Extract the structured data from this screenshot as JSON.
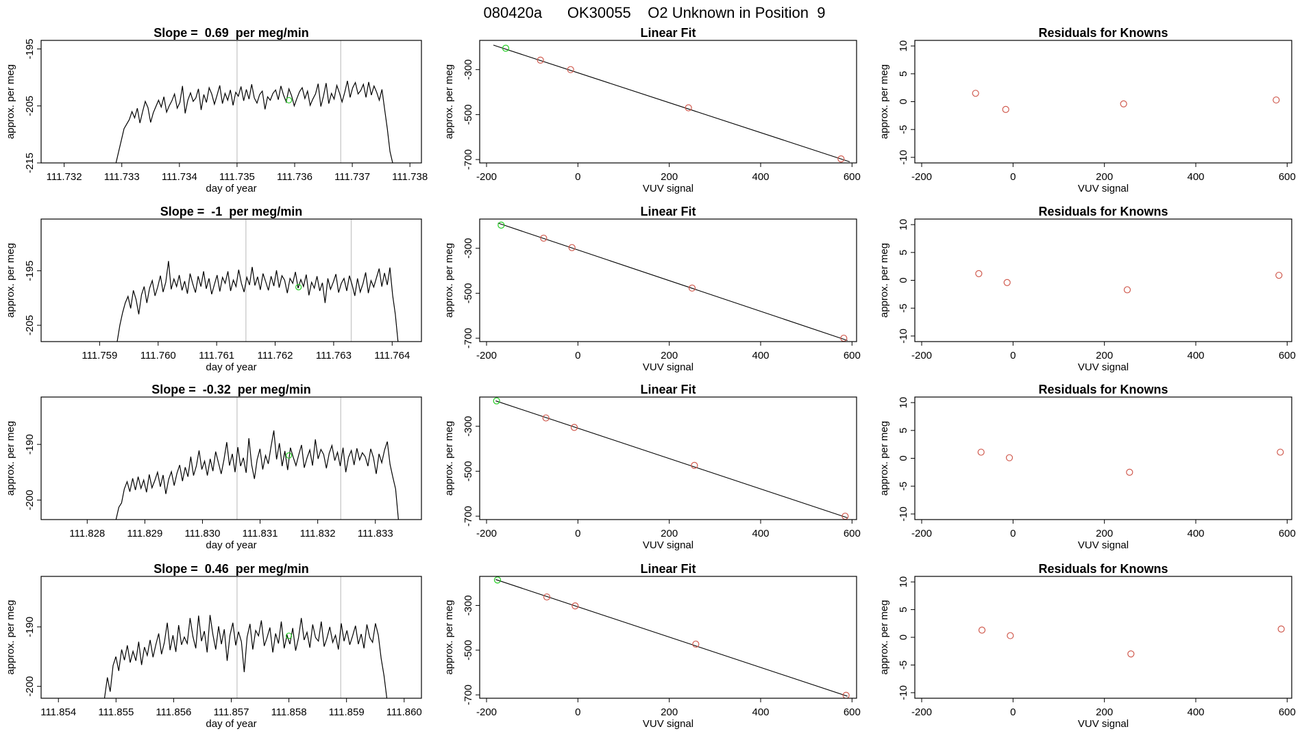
{
  "figure_title": "080420a      OK30055    O2 Unknown in Position  9",
  "colors": {
    "trace": "#000000",
    "fit_line": "#000000",
    "known_points": "#d05a4e",
    "unknown_point": "#22cc22",
    "marker_line": "#c8c8c8"
  },
  "chart_data": [
    {
      "type": "line",
      "panel": "timeseries-1",
      "title": "Slope =  0.69  per meg/min",
      "xlabel": "day of year",
      "ylabel": "approx. per meg",
      "xlim": [
        111.7316,
        111.7382
      ],
      "ylim": [
        -215,
        -193.5
      ],
      "xticks": [
        "111.732",
        "111.733",
        "111.734",
        "111.735",
        "111.736",
        "111.737",
        "111.738"
      ],
      "yticks": [
        "-195",
        "-205",
        "-215"
      ],
      "ytick_values": [
        -195,
        -205,
        -215
      ],
      "series": [
        {
          "x_start": 111.7329,
          "x_end": 111.7377,
          "center": -205.5,
          "values": [
            -215,
            -213,
            -211,
            -209,
            -208.2,
            -207.4,
            -206,
            -207.1,
            -205.4,
            -208,
            -206,
            -204.2,
            -205.3,
            -207.9,
            -206.2,
            -205.1,
            -204,
            -205.2,
            -203.4,
            -206.1,
            -205,
            -204.1,
            -202.9,
            -205.4,
            -204.4,
            -201.5,
            -206.3,
            -204,
            -202.7,
            -204.2,
            -203.6,
            -202,
            -205.7,
            -203,
            -204.4,
            -201.8,
            -202.9,
            -204.7,
            -203.1,
            -201.4,
            -204.6,
            -202.8,
            -204,
            -202.2,
            -204.9,
            -202.6,
            -203.3,
            -201.6,
            -204.1,
            -202.1,
            -203.8,
            -201.2,
            -203.6,
            -204.5,
            -203,
            -202.4,
            -205.6,
            -203.4,
            -204,
            -202.8,
            -202.2,
            -203.9,
            -201.5,
            -203.1,
            -204.3,
            -202,
            -203.2,
            -205,
            -203.7,
            -202.5,
            -201.8,
            -203.7,
            -202.4,
            -204.9,
            -203.8,
            -202.9,
            -201.1,
            -205.1,
            -203.3,
            -201,
            -204.6,
            -202.8,
            -203.8,
            -201.4,
            -202.7,
            -204.3,
            -202.6,
            -200.6,
            -203.5,
            -201.8,
            -200.9,
            -202.9,
            -202.3,
            -201.2,
            -203.5,
            -200.8,
            -203.1,
            -201.5,
            -202.6,
            -204,
            -202.1,
            -205.6,
            -209,
            -213,
            -215
          ]
        }
      ],
      "vlines": [
        111.735,
        111.7368
      ],
      "unknown_point": {
        "x": 111.7359,
        "y": -204
      }
    },
    {
      "type": "scatter",
      "panel": "linear-fit-1",
      "title": "Linear Fit",
      "xlabel": "VUV signal",
      "ylabel": "approx. per meg",
      "xlim": [
        -215,
        610
      ],
      "ylim": [
        -715,
        -170
      ],
      "xticks": [
        "-200",
        "0",
        "200",
        "400",
        "600"
      ],
      "yticks": [
        "-300",
        "-500",
        "-700"
      ],
      "ytick_values": [
        -300,
        -500,
        -700
      ],
      "fit_line": {
        "x": [
          -185,
          595
        ],
        "y": [
          -191,
          -710
        ]
      },
      "known_points": {
        "x": [
          -82,
          -16,
          242,
          576
        ],
        "y": [
          -258,
          -300,
          -470,
          -697
        ]
      },
      "unknown_point": {
        "x": -158,
        "y": -205
      }
    },
    {
      "type": "scatter",
      "panel": "residuals-1",
      "title": "Residuals for Knowns",
      "xlabel": "VUV signal",
      "ylabel": "approx. per meg",
      "xlim": [
        -215,
        610
      ],
      "ylim": [
        -11,
        11
      ],
      "xticks": [
        "-200",
        "0",
        "200",
        "400",
        "600"
      ],
      "yticks": [
        "10",
        "5",
        "0",
        "-5",
        "-10"
      ],
      "ytick_values": [
        10,
        5,
        0,
        -5,
        -10
      ],
      "known_points": {
        "x": [
          -82,
          -16,
          242,
          576
        ],
        "y": [
          1.5,
          -1.4,
          -0.4,
          0.3
        ]
      }
    },
    {
      "type": "line",
      "panel": "timeseries-2",
      "title": "Slope =  -1  per meg/min",
      "xlabel": "day of year",
      "ylabel": "approx. per meg",
      "xlim": [
        111.758,
        111.7645
      ],
      "ylim": [
        -208,
        -185.5
      ],
      "xticks": [
        "111.759",
        "111.760",
        "111.761",
        "111.762",
        "111.763",
        "111.764"
      ],
      "yticks": [
        "-195",
        "-205"
      ],
      "ytick_values": [
        -195,
        -205
      ],
      "series": [
        {
          "x_start": 111.7593,
          "x_end": 111.7641,
          "center": -197.5,
          "values": [
            -208,
            -205,
            -202.7,
            -200.9,
            -199.7,
            -201.9,
            -198.6,
            -200.3,
            -203,
            -199.4,
            -197.9,
            -200.9,
            -198.2,
            -196.8,
            -199.6,
            -198,
            -195.9,
            -198.9,
            -197.1,
            -193.2,
            -198.4,
            -196.5,
            -197.9,
            -195.8,
            -198.6,
            -196.9,
            -199.2,
            -195.5,
            -197.4,
            -199,
            -196,
            -197.9,
            -195.1,
            -198.3,
            -196.4,
            -199.3,
            -197.5,
            -195.8,
            -198.8,
            -196.2,
            -197.3,
            -195.1,
            -198.7,
            -196.7,
            -197.9,
            -194.8,
            -197.3,
            -198.9,
            -196.2,
            -197.6,
            -194.3,
            -197.7,
            -196.1,
            -198.5,
            -195.5,
            -197,
            -198.6,
            -196,
            -197.8,
            -194.9,
            -198.1,
            -195.9,
            -196.7,
            -199.1,
            -196.4,
            -197.3,
            -195.2,
            -198.2,
            -196.6,
            -197.9,
            -195.7,
            -199.5,
            -197.1,
            -198.2,
            -196,
            -198.7,
            -197.2,
            -200.9,
            -196.4,
            -198.4,
            -197.1,
            -195.6,
            -199,
            -197.3,
            -196.4,
            -198.7,
            -195.9,
            -197.6,
            -199.6,
            -196.4,
            -198.9,
            -197.4,
            -195.3,
            -199.1,
            -196.8,
            -198,
            -196.3,
            -194.6,
            -197.9,
            -195.4,
            -197.6,
            -194.4,
            -199.5,
            -203,
            -208
          ]
        }
      ],
      "vlines": [
        111.7615,
        111.7633
      ],
      "unknown_point": {
        "x": 111.7624,
        "y": -198
      }
    },
    {
      "type": "scatter",
      "panel": "linear-fit-2",
      "title": "Linear Fit",
      "xlabel": "VUV signal",
      "ylabel": "approx. per meg",
      "xlim": [
        -215,
        610
      ],
      "ylim": [
        -715,
        -170
      ],
      "xticks": [
        "-200",
        "0",
        "200",
        "400",
        "600"
      ],
      "yticks": [
        "-300",
        "-500",
        "-700"
      ],
      "ytick_values": [
        -300,
        -500,
        -700
      ],
      "fit_line": {
        "x": [
          -175,
          590
        ],
        "y": [
          -188,
          -710
        ]
      },
      "known_points": {
        "x": [
          -75,
          -13,
          250,
          582
        ],
        "y": [
          -255,
          -297,
          -477,
          -700
        ]
      },
      "unknown_point": {
        "x": -168,
        "y": -197
      }
    },
    {
      "type": "scatter",
      "panel": "residuals-2",
      "title": "Residuals for Knowns",
      "xlabel": "VUV signal",
      "ylabel": "approx. per meg",
      "xlim": [
        -215,
        610
      ],
      "ylim": [
        -11,
        11
      ],
      "xticks": [
        "-200",
        "0",
        "200",
        "400",
        "600"
      ],
      "yticks": [
        "10",
        "5",
        "0",
        "-5",
        "-10"
      ],
      "ytick_values": [
        10,
        5,
        0,
        -5,
        -10
      ],
      "known_points": {
        "x": [
          -75,
          -13,
          250,
          582
        ],
        "y": [
          1.2,
          -0.4,
          -1.7,
          0.9
        ]
      }
    },
    {
      "type": "line",
      "panel": "timeseries-3",
      "title": "Slope =  -0.32  per meg/min",
      "xlabel": "day of year",
      "ylabel": "approx. per meg",
      "xlim": [
        111.8272,
        111.8338
      ],
      "ylim": [
        -203.5,
        -181.5
      ],
      "xticks": [
        "111.828",
        "111.829",
        "111.830",
        "111.831",
        "111.832",
        "111.833"
      ],
      "yticks": [
        "-190",
        "-200"
      ],
      "ytick_values": [
        -190,
        -200
      ],
      "series": [
        {
          "x_start": 111.8285,
          "x_end": 111.8334,
          "center": -193.5,
          "values": [
            -203.5,
            -201.3,
            -200.5,
            -198,
            -196.7,
            -198.5,
            -196.1,
            -198.2,
            -195.8,
            -197.9,
            -196.4,
            -198.6,
            -195.4,
            -197.8,
            -196.5,
            -195,
            -197.6,
            -195.5,
            -198.9,
            -196.3,
            -194.9,
            -197.4,
            -195.2,
            -193.7,
            -196.6,
            -194.1,
            -195.8,
            -192.2,
            -195.6,
            -193.9,
            -191.1,
            -194.5,
            -193,
            -195.6,
            -192.6,
            -194.8,
            -191.3,
            -193.3,
            -195.3,
            -192.7,
            -189.6,
            -193.8,
            -191.7,
            -195,
            -190.5,
            -193.9,
            -192.4,
            -195.1,
            -188.9,
            -193.7,
            -196.2,
            -192.7,
            -190.8,
            -194.5,
            -192,
            -193.5,
            -190.4,
            -187.5,
            -192.7,
            -189.8,
            -193.9,
            -191.2,
            -194.6,
            -190.6,
            -192.3,
            -193.8,
            -191.9,
            -190.1,
            -194.2,
            -192.4,
            -191,
            -193.8,
            -189.1,
            -192.6,
            -190.9,
            -191.8,
            -194.3,
            -191.6,
            -190.2,
            -192.9,
            -191.4,
            -193.9,
            -190.6,
            -195,
            -192.3,
            -191.1,
            -193.7,
            -190.7,
            -192.8,
            -191.5,
            -192.2,
            -193.9,
            -190.8,
            -192.4,
            -195.3,
            -191.7,
            -193.3,
            -191,
            -189.5,
            -193.6,
            -195.9,
            -198,
            -203.5
          ]
        }
      ],
      "vlines": [
        111.8306,
        111.8324
      ],
      "unknown_point": {
        "x": 111.8315,
        "y": -192
      }
    },
    {
      "type": "scatter",
      "panel": "linear-fit-3",
      "title": "Linear Fit",
      "xlabel": "VUV signal",
      "ylabel": "approx. per meg",
      "xlim": [
        -215,
        610
      ],
      "ylim": [
        -715,
        -170
      ],
      "xticks": [
        "-200",
        "0",
        "200",
        "400",
        "600"
      ],
      "yticks": [
        "-300",
        "-500",
        "-700"
      ],
      "ytick_values": [
        -300,
        -500,
        -700
      ],
      "fit_line": {
        "x": [
          -180,
          590
        ],
        "y": [
          -187,
          -707
        ]
      },
      "known_points": {
        "x": [
          -70,
          -8,
          255,
          585
        ],
        "y": [
          -263,
          -305,
          -474,
          -700
        ]
      },
      "unknown_point": {
        "x": -178,
        "y": -187
      }
    },
    {
      "type": "scatter",
      "panel": "residuals-3",
      "title": "Residuals for Knowns",
      "xlabel": "VUV signal",
      "ylabel": "approx. per meg",
      "xlim": [
        -215,
        610
      ],
      "ylim": [
        -11,
        11
      ],
      "xticks": [
        "-200",
        "0",
        "200",
        "400",
        "600"
      ],
      "yticks": [
        "10",
        "5",
        "0",
        "-5",
        "-10"
      ],
      "ytick_values": [
        10,
        5,
        0,
        -5,
        -10
      ],
      "known_points": {
        "x": [
          -70,
          -8,
          255,
          585
        ],
        "y": [
          1.1,
          0.1,
          -2.5,
          1.1
        ]
      }
    },
    {
      "type": "line",
      "panel": "timeseries-4",
      "title": "Slope =  0.46  per meg/min",
      "xlabel": "day of year",
      "ylabel": "approx. per meg",
      "xlim": [
        111.8537,
        111.8603
      ],
      "ylim": [
        -202,
        -181.5
      ],
      "xticks": [
        "111.854",
        "111.855",
        "111.856",
        "111.857",
        "111.858",
        "111.859",
        "111.860"
      ],
      "yticks": [
        "-190",
        "-200"
      ],
      "ytick_values": [
        -190,
        -200
      ],
      "series": [
        {
          "x_start": 111.8548,
          "x_end": 111.8597,
          "center": -191.5,
          "values": [
            -202,
            -198.5,
            -200.9,
            -196.5,
            -195,
            -197.4,
            -193.8,
            -195.6,
            -193.1,
            -196,
            -194.1,
            -195.7,
            -192.5,
            -196.4,
            -193.4,
            -194.8,
            -192.2,
            -195.1,
            -193,
            -191.1,
            -194.6,
            -192.6,
            -189.3,
            -193.9,
            -191.4,
            -194.2,
            -189.7,
            -193,
            -191.7,
            -192.8,
            -188.5,
            -191.6,
            -193.6,
            -188.1,
            -192.4,
            -190.7,
            -194.3,
            -188,
            -191.3,
            -193.8,
            -189.9,
            -192.9,
            -190.4,
            -195.7,
            -191.4,
            -189.3,
            -193.1,
            -190.8,
            -192.5,
            -197.6,
            -191.7,
            -189.5,
            -193.8,
            -190.6,
            -191.5,
            -188.9,
            -193.2,
            -191.8,
            -190.1,
            -194.3,
            -191.1,
            -192.8,
            -189.1,
            -193.6,
            -191.4,
            -192.9,
            -190.2,
            -194,
            -191.9,
            -188.5,
            -192.2,
            -190.9,
            -193.5,
            -189.6,
            -191.8,
            -192.4,
            -189.1,
            -193.3,
            -191.9,
            -190,
            -192.6,
            -191.4,
            -193.8,
            -189.4,
            -192.4,
            -190.6,
            -193,
            -191.5,
            -189.8,
            -192.9,
            -191.2,
            -193.6,
            -189.6,
            -191.8,
            -192.6,
            -189.4,
            -191.4,
            -195.3,
            -198.2,
            -202
          ]
        }
      ],
      "vlines": [
        111.8571,
        111.8589
      ],
      "unknown_point": {
        "x": 111.858,
        "y": -191.5
      }
    },
    {
      "type": "scatter",
      "panel": "linear-fit-4",
      "title": "Linear Fit",
      "xlabel": "VUV signal",
      "ylabel": "approx. per meg",
      "xlim": [
        -215,
        610
      ],
      "ylim": [
        -715,
        -170
      ],
      "xticks": [
        "-200",
        "0",
        "200",
        "400",
        "600"
      ],
      "yticks": [
        "-300",
        "-500",
        "-700"
      ],
      "ytick_values": [
        -300,
        -500,
        -700
      ],
      "fit_line": {
        "x": [
          -180,
          590
        ],
        "y": [
          -184,
          -706
        ]
      },
      "known_points": {
        "x": [
          -68,
          -6,
          258,
          587
        ],
        "y": [
          -262,
          -302,
          -473,
          -702
        ]
      },
      "unknown_point": {
        "x": -176,
        "y": -186
      }
    },
    {
      "type": "scatter",
      "panel": "residuals-4",
      "title": "Residuals for Knowns",
      "xlabel": "VUV signal",
      "ylabel": "approx. per meg",
      "xlim": [
        -215,
        610
      ],
      "ylim": [
        -11,
        11
      ],
      "xticks": [
        "-200",
        "0",
        "200",
        "400",
        "600"
      ],
      "yticks": [
        "10",
        "5",
        "0",
        "-5",
        "-10"
      ],
      "ytick_values": [
        10,
        5,
        0,
        -5,
        -10
      ],
      "known_points": {
        "x": [
          -68,
          -6,
          258,
          587
        ],
        "y": [
          1.3,
          0.3,
          -3.0,
          1.5
        ]
      }
    }
  ]
}
